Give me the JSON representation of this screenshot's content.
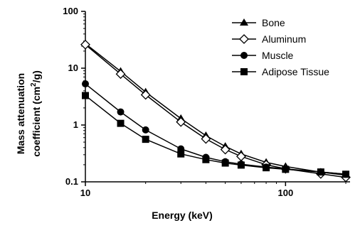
{
  "chart_data": {
    "type": "line",
    "xlabel": "Energy (keV)",
    "ylabel_line1": "Mass attenuation",
    "ylabel_line2": "coefficient (cm",
    "ylabel_sup": "2",
    "ylabel_end": "/g)",
    "x_scale": "log",
    "y_scale": "log",
    "xlim": [
      10,
      210
    ],
    "ylim": [
      0.1,
      100
    ],
    "x_ticks": [
      10,
      100
    ],
    "x_tick_labels": [
      "10",
      "100"
    ],
    "y_ticks": [
      0.1,
      1,
      10,
      100
    ],
    "y_tick_labels": [
      "0.1",
      "1",
      "10",
      "100"
    ],
    "grid": false,
    "legend_position": "top-right",
    "series": [
      {
        "name": "Bone",
        "marker": "triangle",
        "x": [
          10,
          15,
          20,
          30,
          40,
          50,
          60,
          80,
          100,
          150,
          200
        ],
        "y": [
          27,
          8.8,
          3.8,
          1.3,
          0.65,
          0.42,
          0.31,
          0.22,
          0.186,
          0.148,
          0.131
        ]
      },
      {
        "name": "Aluminum",
        "marker": "diamond-open",
        "x": [
          10,
          15,
          20,
          30,
          40,
          50,
          60,
          80,
          100,
          150,
          200
        ],
        "y": [
          26,
          7.9,
          3.4,
          1.13,
          0.57,
          0.37,
          0.28,
          0.2,
          0.17,
          0.138,
          0.12
        ]
      },
      {
        "name": "Muscle",
        "marker": "circle",
        "x": [
          10,
          15,
          20,
          30,
          40,
          50,
          60,
          80,
          100,
          150,
          200
        ],
        "y": [
          5.3,
          1.7,
          0.82,
          0.38,
          0.27,
          0.226,
          0.205,
          0.182,
          0.169,
          0.149,
          0.136
        ]
      },
      {
        "name": "Adipose Tissue",
        "marker": "square",
        "x": [
          10,
          15,
          20,
          30,
          40,
          50,
          60,
          80,
          100,
          150,
          200
        ],
        "y": [
          3.3,
          1.07,
          0.56,
          0.31,
          0.246,
          0.214,
          0.197,
          0.177,
          0.166,
          0.149,
          0.136
        ]
      }
    ]
  }
}
